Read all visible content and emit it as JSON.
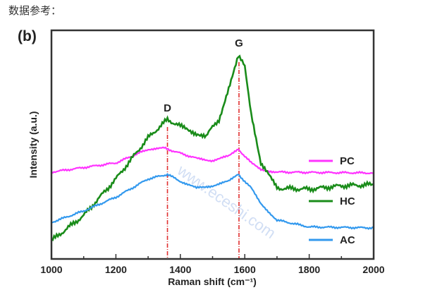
{
  "caption": "数据参考：",
  "panel_label": "(b)",
  "watermark": "www.eceshi.com",
  "chart_data": {
    "type": "line",
    "xlabel": "Raman shift (cm⁻¹)",
    "ylabel": "Intensity (a.u.)",
    "xlim": [
      1000,
      2000
    ],
    "ylim": [
      0,
      100
    ],
    "xticks": [
      1000,
      1200,
      1400,
      1600,
      1800,
      2000
    ],
    "legend_position": "right",
    "annotations": [
      {
        "label": "D",
        "x": 1360
      },
      {
        "label": "G",
        "x": 1582
      }
    ],
    "series": [
      {
        "name": "PC",
        "color": "#ff33ff",
        "x": [
          1000,
          1200,
          1300,
          1350,
          1450,
          1500,
          1550,
          1580,
          1620,
          1650,
          1700,
          2000
        ],
        "y": [
          38,
          42,
          48,
          48.5,
          44,
          43,
          45,
          48,
          42,
          39,
          38,
          37.6
        ]
      },
      {
        "name": "HC",
        "color": "#1a8c1a",
        "x": [
          1000,
          1100,
          1200,
          1300,
          1360,
          1400,
          1450,
          1480,
          1520,
          1550,
          1580,
          1600,
          1620,
          1650,
          1700,
          1800,
          1900,
          2000
        ],
        "y": [
          8,
          19,
          35,
          53,
          61,
          58,
          55,
          54,
          61,
          75,
          89,
          84,
          64,
          42,
          31,
          30.5,
          32,
          32.5
        ]
      },
      {
        "name": "AC",
        "color": "#3399ee",
        "x": [
          1000,
          1100,
          1200,
          1300,
          1360,
          1400,
          1450,
          1500,
          1550,
          1580,
          1620,
          1650,
          1700,
          1800,
          2000
        ],
        "y": [
          16,
          21,
          27,
          35,
          37,
          34,
          31,
          32,
          34,
          37,
          31,
          24,
          17,
          14,
          13.6
        ]
      }
    ]
  }
}
